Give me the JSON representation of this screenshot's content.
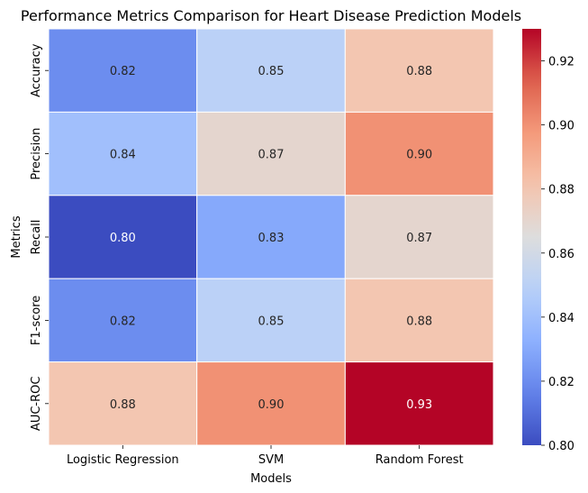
{
  "chart_data": {
    "type": "heatmap",
    "title": "Performance Metrics Comparison for Heart Disease Prediction Models",
    "xlabel": "Models",
    "ylabel": "Metrics",
    "x_categories": [
      "Logistic Regression",
      "SVM",
      "Random Forest"
    ],
    "y_categories": [
      "Accuracy",
      "Precision",
      "Recall",
      "F1-score",
      "AUC-ROC"
    ],
    "values": [
      [
        0.82,
        0.85,
        0.88
      ],
      [
        0.84,
        0.87,
        0.9
      ],
      [
        0.8,
        0.83,
        0.87
      ],
      [
        0.82,
        0.85,
        0.88
      ],
      [
        0.88,
        0.9,
        0.93
      ]
    ],
    "value_format": "0.00",
    "colormap": "coolwarm",
    "vmin": 0.8,
    "vmax": 0.93,
    "colorbar_ticks": [
      "0.80",
      "0.82",
      "0.84",
      "0.86",
      "0.88",
      "0.90",
      "0.92"
    ],
    "colorbar_tick_values": [
      0.8,
      0.82,
      0.84,
      0.86,
      0.88,
      0.9,
      0.92
    ],
    "grid_lines": true,
    "grid_color": "#ffffff"
  }
}
